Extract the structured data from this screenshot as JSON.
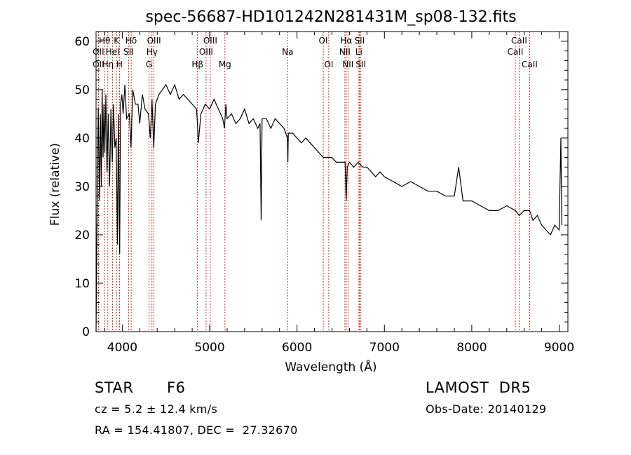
{
  "chart_data": {
    "type": "line",
    "title": "spec-56687-HD101242N281431M_sp08-132.fits",
    "xlabel": "Wavelength (Å)",
    "ylabel": "Flux (relative)",
    "xlim": [
      3700,
      9100
    ],
    "ylim": [
      0,
      62
    ],
    "xticks": [
      4000,
      5000,
      6000,
      7000,
      8000,
      9000
    ],
    "yticks": [
      0,
      10,
      20,
      30,
      40,
      50,
      60
    ],
    "grid": false,
    "line_color": "#000000",
    "marker_color": "#cc0000",
    "series": [
      {
        "x": [
          3700,
          3715,
          3725,
          3740,
          3750,
          3760,
          3770,
          3780,
          3790,
          3800,
          3812,
          3825,
          3840,
          3855,
          3870,
          3885,
          3900,
          3915,
          3930,
          3945,
          3955,
          3965,
          3970,
          3980,
          3995,
          4010,
          4030,
          4050,
          4080,
          4100,
          4120,
          4150,
          4180,
          4200,
          4230,
          4260,
          4300,
          4320,
          4340,
          4360,
          4380,
          4420,
          4460,
          4500,
          4550,
          4600,
          4650,
          4700,
          4750,
          4800,
          4850,
          4860,
          4870,
          4900,
          4950,
          5000,
          5050,
          5100,
          5150,
          5170,
          5185,
          5200,
          5250,
          5300,
          5350,
          5400,
          5450,
          5500,
          5550,
          5577,
          5590,
          5600,
          5650,
          5700,
          5750,
          5800,
          5850,
          5890,
          5895,
          5900,
          5950,
          6000,
          6050,
          6100,
          6150,
          6200,
          6250,
          6300,
          6350,
          6400,
          6450,
          6500,
          6550,
          6563,
          6575,
          6600,
          6650,
          6700,
          6750,
          6800,
          6850,
          6900,
          6950,
          7000,
          7100,
          7200,
          7300,
          7400,
          7500,
          7600,
          7700,
          7800,
          7850,
          7900,
          8000,
          8100,
          8200,
          8300,
          8400,
          8498,
          8542,
          8600,
          8662,
          8700,
          8750,
          8800,
          8850,
          8900,
          8950,
          9000,
          9020,
          9030
        ],
        "y": [
          0,
          31,
          46,
          27,
          45,
          30,
          50,
          36,
          47,
          37,
          49,
          33,
          45,
          30,
          46,
          35,
          47,
          38,
          40,
          18,
          45,
          25,
          16,
          47,
          49,
          45,
          51,
          44,
          45,
          38,
          50,
          47,
          47,
          43,
          49,
          46,
          45,
          40,
          48,
          38,
          47,
          49,
          50,
          51,
          49,
          51,
          48,
          49,
          48,
          47,
          46,
          43,
          39,
          45,
          47,
          46,
          48,
          46,
          44,
          42,
          47,
          44,
          45,
          43,
          44,
          46,
          43,
          44,
          42,
          43,
          23,
          44,
          44,
          42,
          44,
          43,
          42,
          40,
          35,
          41,
          41,
          40,
          39,
          40,
          39,
          38,
          37,
          36,
          36,
          36,
          35,
          35,
          35,
          27,
          34,
          35,
          34,
          35,
          34,
          34,
          33,
          32,
          33,
          32,
          31,
          30,
          31,
          30,
          29,
          29,
          28,
          28,
          34,
          27,
          27,
          26,
          25,
          25,
          26,
          25,
          24,
          25,
          25,
          23,
          24,
          22,
          21,
          20,
          22,
          21,
          40,
          22
        ]
      }
    ],
    "lines": [
      {
        "name": "Hθ",
        "x": 3798,
        "row": 1
      },
      {
        "name": "OII",
        "x": 3727,
        "row": 2
      },
      {
        "name": "OII",
        "x": 3727,
        "row": 3
      },
      {
        "name": "Hη",
        "x": 3835,
        "row": 3
      },
      {
        "name": "HeI",
        "x": 3889,
        "row": 2
      },
      {
        "name": "K",
        "x": 3934,
        "row": 1
      },
      {
        "name": "H",
        "x": 3968,
        "row": 3
      },
      {
        "name": "Hδ",
        "x": 4102,
        "row": 1
      },
      {
        "name": "SII",
        "x": 4072,
        "row": 2
      },
      {
        "name": "OIII",
        "x": 4363,
        "row": 1
      },
      {
        "name": "Hγ",
        "x": 4340,
        "row": 2
      },
      {
        "name": "G",
        "x": 4306,
        "row": 3
      },
      {
        "name": "Hβ",
        "x": 4861,
        "row": 3
      },
      {
        "name": "OIII",
        "x": 5007,
        "row": 1
      },
      {
        "name": "OIII",
        "x": 4959,
        "row": 2
      },
      {
        "name": "Mg",
        "x": 5175,
        "row": 3
      },
      {
        "name": "Na",
        "x": 5893,
        "row": 2
      },
      {
        "name": "OI",
        "x": 6300,
        "row": 1
      },
      {
        "name": "OI",
        "x": 6363,
        "row": 3
      },
      {
        "name": "Hα",
        "x": 6563,
        "row": 1
      },
      {
        "name": "NII",
        "x": 6548,
        "row": 2
      },
      {
        "name": "NII",
        "x": 6583,
        "row": 3
      },
      {
        "name": "SII",
        "x": 6716,
        "row": 1
      },
      {
        "name": "Li",
        "x": 6708,
        "row": 2
      },
      {
        "name": "SII",
        "x": 6731,
        "row": 3
      },
      {
        "name": "CaII",
        "x": 8542,
        "row": 1
      },
      {
        "name": "CaII",
        "x": 8498,
        "row": 2
      },
      {
        "name": "CaII",
        "x": 8662,
        "row": 3
      }
    ]
  },
  "info": {
    "object_class": "STAR",
    "subclass": "F6",
    "survey": "LAMOST  DR5",
    "cz": "cz = 5.2 ± 12.4 km/s",
    "obs_date": "Obs-Date: 20140129",
    "coords": "RA = 154.41807, DEC =  27.32670"
  }
}
